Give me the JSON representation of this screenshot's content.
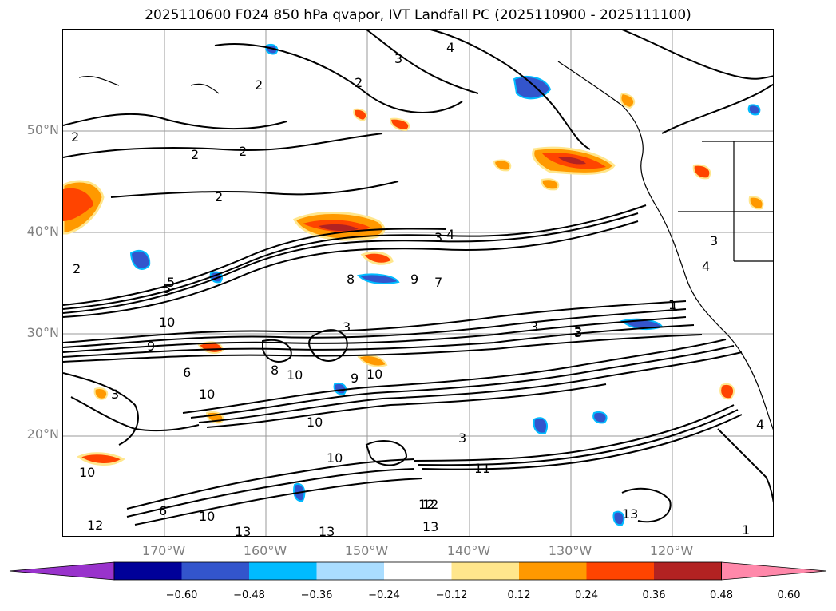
{
  "title": "2025110600 F024 850 hPa qvapor, IVT Landfall PC (2025110900 - 2025111100)",
  "lat_labels": [
    "50°N",
    "40°N",
    "30°N",
    "20°N"
  ],
  "lon_labels": [
    "170°W",
    "160°W",
    "150°W",
    "140°W",
    "130°W",
    "120°W"
  ],
  "colorbar": {
    "colors": [
      "#9933cc",
      "#000099",
      "#3355cc",
      "#00bbff",
      "#aaddff",
      "#ffffff",
      "#ffe68c",
      "#ff9900",
      "#ff4400",
      "#b22222",
      "#ff88aa"
    ],
    "tick_labels": [
      "−0.60",
      "−0.48",
      "−0.36",
      "−0.24",
      "−0.12",
      "0.12",
      "0.24",
      "0.36",
      "0.48",
      "0.60"
    ]
  },
  "contour_labels": [
    "4",
    "3",
    "2",
    "2",
    "2",
    "2",
    "2",
    "2",
    "3",
    "4",
    "2",
    "9",
    "7",
    "8",
    "5",
    "10",
    "9",
    "3",
    "3",
    "3",
    "2",
    "1",
    "4",
    "3",
    "10",
    "6",
    "8",
    "10",
    "10",
    "10",
    "9",
    "3",
    "10",
    "12",
    "10",
    "3",
    "11",
    "12",
    "13",
    "13",
    "13",
    "13",
    "12",
    "6",
    "10",
    "5",
    "4",
    "1",
    "1"
  ]
}
